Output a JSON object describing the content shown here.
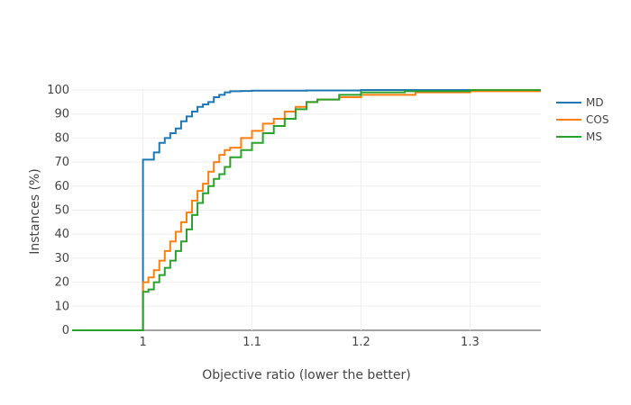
{
  "chart_data": {
    "type": "line",
    "line_shape": "step",
    "xlabel": "Objective ratio (lower the better)",
    "ylabel": "Instances (%)",
    "xlim": [
      0.935,
      1.365
    ],
    "ylim": [
      0,
      100
    ],
    "xticks": [
      {
        "value": 1,
        "label": "1"
      },
      {
        "value": 1.1,
        "label": "1.1"
      },
      {
        "value": 1.2,
        "label": "1.2"
      },
      {
        "value": 1.3,
        "label": "1.3"
      }
    ],
    "yticks": [
      {
        "value": 0,
        "label": "0"
      },
      {
        "value": 10,
        "label": "10"
      },
      {
        "value": 20,
        "label": "20"
      },
      {
        "value": 30,
        "label": "30"
      },
      {
        "value": 40,
        "label": "40"
      },
      {
        "value": 50,
        "label": "50"
      },
      {
        "value": 60,
        "label": "60"
      },
      {
        "value": 70,
        "label": "70"
      },
      {
        "value": 80,
        "label": "80"
      },
      {
        "value": 90,
        "label": "90"
      },
      {
        "value": 100,
        "label": "100"
      }
    ],
    "grid": true,
    "legend_position": "top-right",
    "series": [
      {
        "name": "MD",
        "color": "#1f77b4",
        "x": [
          0.935,
          1.0,
          1.0,
          1.005,
          1.01,
          1.015,
          1.02,
          1.025,
          1.03,
          1.035,
          1.04,
          1.045,
          1.05,
          1.055,
          1.06,
          1.065,
          1.07,
          1.075,
          1.08,
          1.09,
          1.1,
          1.15,
          1.2,
          1.365
        ],
        "y": [
          0,
          0,
          71,
          71,
          74,
          78,
          80,
          82,
          84,
          87,
          89,
          91,
          93,
          94,
          95,
          97,
          98,
          99,
          99.5,
          99.6,
          99.7,
          99.8,
          100,
          100
        ]
      },
      {
        "name": "COS",
        "color": "#ff7f0e",
        "x": [
          0.935,
          1.0,
          1.0,
          1.005,
          1.01,
          1.015,
          1.02,
          1.025,
          1.03,
          1.035,
          1.04,
          1.045,
          1.05,
          1.055,
          1.06,
          1.065,
          1.07,
          1.075,
          1.08,
          1.09,
          1.1,
          1.11,
          1.12,
          1.13,
          1.14,
          1.15,
          1.16,
          1.18,
          1.2,
          1.25,
          1.3,
          1.365
        ],
        "y": [
          0,
          0,
          20,
          22,
          25,
          29,
          33,
          37,
          41,
          45,
          49,
          54,
          58,
          61,
          66,
          70,
          73,
          75,
          76,
          80,
          83,
          86,
          88,
          91,
          93,
          95,
          96,
          97,
          98,
          99,
          99.5,
          99.5
        ]
      },
      {
        "name": "MS",
        "color": "#2ca02c",
        "x": [
          0.935,
          1.0,
          1.0,
          1.005,
          1.01,
          1.015,
          1.02,
          1.025,
          1.03,
          1.035,
          1.04,
          1.045,
          1.05,
          1.055,
          1.06,
          1.065,
          1.07,
          1.075,
          1.08,
          1.09,
          1.1,
          1.11,
          1.12,
          1.13,
          1.14,
          1.15,
          1.16,
          1.18,
          1.2,
          1.24,
          1.3,
          1.365
        ],
        "y": [
          0,
          0,
          16,
          17,
          20,
          23,
          26,
          29,
          33,
          37,
          42,
          48,
          53,
          57,
          60,
          63,
          65,
          68,
          72,
          75,
          78,
          82,
          85,
          88,
          92,
          95,
          96,
          98,
          99,
          99.5,
          100,
          100
        ]
      }
    ]
  }
}
